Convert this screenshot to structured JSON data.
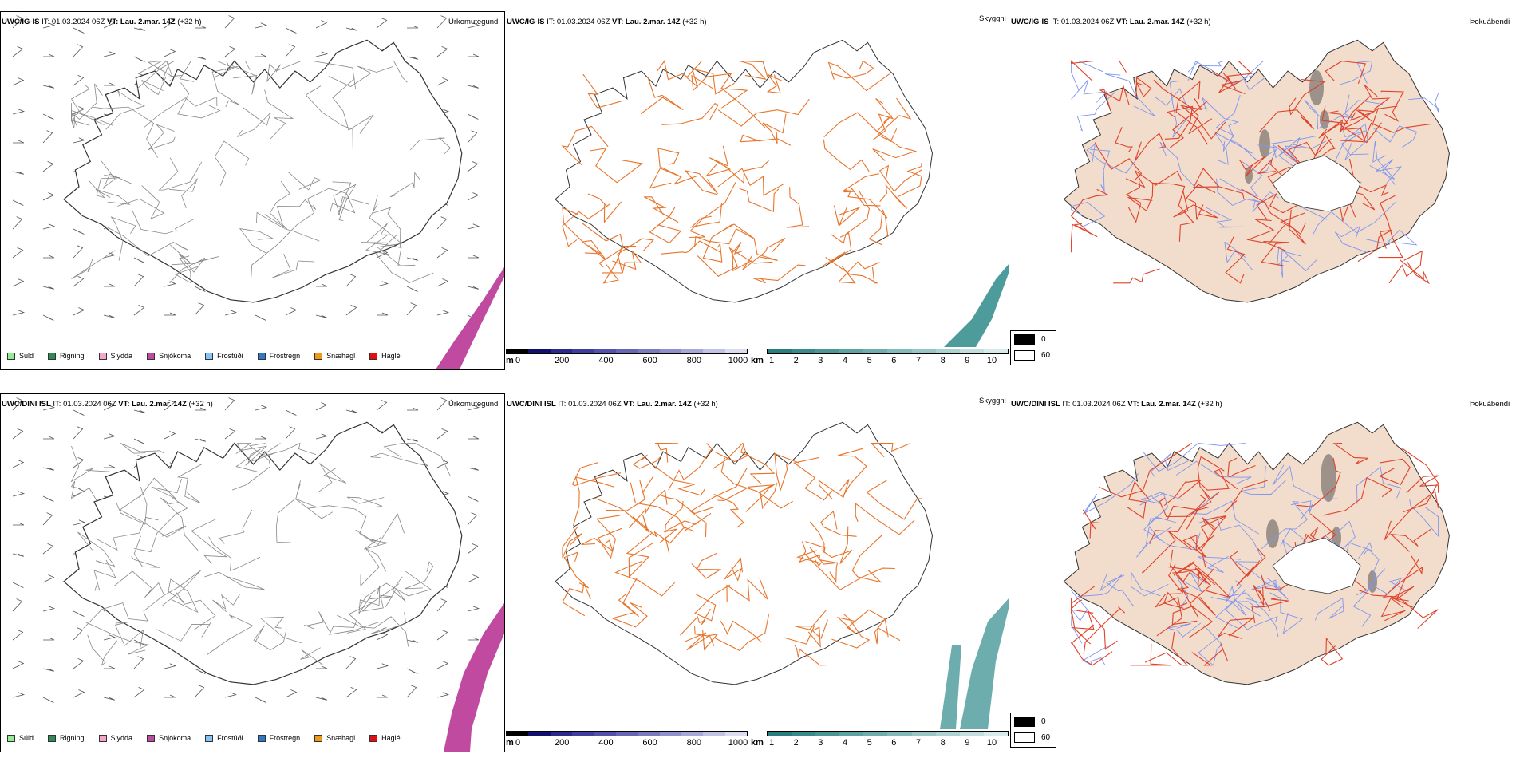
{
  "rows": [
    {
      "model": "UWC/IG-IS",
      "it_label": "IT:",
      "it_value": "01.03.2024 06Z",
      "vt_label": "VT:",
      "vt_value": "Lau. 2.mar. 14Z",
      "offset": "(+32 h)"
    },
    {
      "model": "UWC/DINI ISL",
      "it_label": "IT:",
      "it_value": "01.03.2024 06Z",
      "vt_label": "VT:",
      "vt_value": "Lau. 2.mar. 14Z",
      "offset": "(+32 h)"
    }
  ],
  "panels": {
    "precip_title": "Úrkomutegund",
    "sky_title": "Skyggni",
    "fog_title": "Þokuábendi"
  },
  "precip_legend": [
    {
      "label": "Súld",
      "color": "#90ee90"
    },
    {
      "label": "Rigning",
      "color": "#2e8b57"
    },
    {
      "label": "Slydda",
      "color": "#f4a6c8"
    },
    {
      "label": "Snjókoma",
      "color": "#c04aa0"
    },
    {
      "label": "Frostúði",
      "color": "#87c3f5"
    },
    {
      "label": "Frostregn",
      "color": "#2f78c8"
    },
    {
      "label": "Snæhagl",
      "color": "#f0981a"
    },
    {
      "label": "Haglél",
      "color": "#e01010"
    }
  ],
  "elevation_scale": {
    "unit": "m",
    "ticks": [
      "0",
      "200",
      "400",
      "600",
      "800",
      "1000"
    ],
    "colors": [
      "#000000",
      "#10106e",
      "#2a2a8c",
      "#3e3e9e",
      "#5252aa",
      "#6666b4",
      "#7a7abf",
      "#9090cc",
      "#a8a8d8",
      "#c2c2e4",
      "#dcdcf0"
    ]
  },
  "visibility_scale": {
    "unit": "km",
    "ticks": [
      "1",
      "2",
      "3",
      "4",
      "5",
      "6",
      "7",
      "8",
      "9",
      "10"
    ],
    "colors": [
      "#2a7e7e",
      "#3a8a8a",
      "#4c9696",
      "#5ea2a2",
      "#70aeae",
      "#84baba",
      "#98c6c6",
      "#acd2d2",
      "#c2dede",
      "#d8eaea"
    ]
  },
  "cloud_legend": {
    "items": [
      {
        "label": "0",
        "color": "#000000"
      },
      {
        "label": "60",
        "color": "#ffffff"
      }
    ]
  },
  "colors": {
    "land_fog": "#f2dccb",
    "roads": "#e8742a",
    "roads_red": "#e0422a",
    "rivers": "#7f96f0",
    "snow": "#c04aa0",
    "vis_low": "#2f8a8a"
  }
}
